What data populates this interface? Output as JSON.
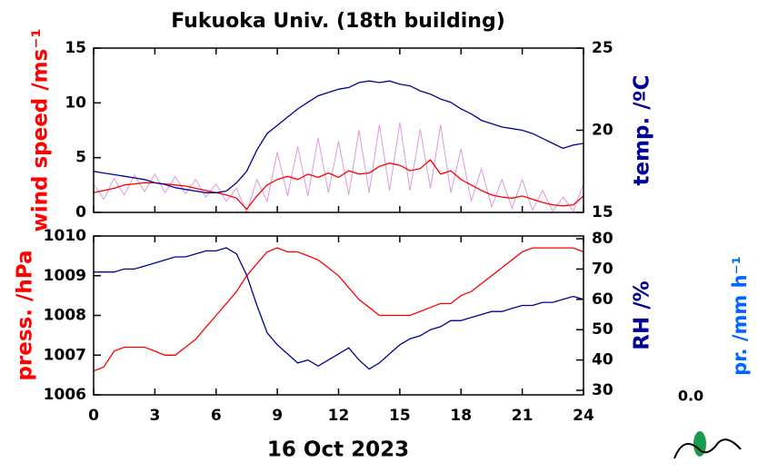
{
  "chart_data": [
    {
      "type": "line",
      "title": "Fukuoka Univ. (18th building)",
      "ylabel": "wind speed /ms⁻¹",
      "y2label": "temp. /ºC",
      "x": [
        0,
        0.5,
        1,
        1.5,
        2,
        2.5,
        3,
        3.5,
        4,
        4.5,
        5,
        5.5,
        6,
        6.5,
        7,
        7.5,
        8,
        8.5,
        9,
        9.5,
        10,
        10.5,
        11,
        11.5,
        12,
        12.5,
        13,
        13.5,
        14,
        14.5,
        15,
        15.5,
        16,
        16.5,
        17,
        17.5,
        18,
        18.5,
        19,
        19.5,
        20,
        20.5,
        21,
        21.5,
        22,
        22.5,
        23,
        23.5,
        24
      ],
      "xlim": [
        0,
        24
      ],
      "xticks": [
        0,
        3,
        6,
        9,
        12,
        15,
        18,
        21,
        24
      ],
      "ylim": [
        0,
        15
      ],
      "yticks": [
        0,
        5,
        10,
        15
      ],
      "y2lim": [
        15,
        25
      ],
      "y2ticks": [
        15,
        20,
        25
      ],
      "ylabel_color": "#ff0000",
      "y2label_color": "#000099",
      "series": [
        {
          "color": "#dd99dd",
          "values": [
            2.6,
            1.2,
            3.1,
            1.6,
            3.4,
            1.9,
            3.5,
            1.8,
            3.3,
            1.7,
            3.0,
            1.4,
            2.6,
            1.0,
            2.2,
            0.0,
            3.0,
            1.0,
            5.5,
            1.5,
            6.0,
            1.5,
            6.8,
            1.8,
            6.5,
            1.6,
            7.5,
            1.8,
            8.0,
            2.0,
            8.2,
            2.0,
            7.6,
            2.2,
            8.0,
            1.8,
            5.8,
            1.0,
            4.0,
            0.5,
            3.0,
            0.4,
            3.0,
            0.2,
            2.0,
            0.1,
            1.4,
            0.1,
            2.6
          ]
        },
        {
          "color": "#ff0000",
          "values": [
            1.8,
            2.0,
            2.2,
            2.5,
            2.6,
            2.7,
            2.7,
            2.6,
            2.5,
            2.4,
            2.2,
            2.0,
            1.8,
            1.6,
            1.3,
            0.3,
            1.5,
            2.5,
            3.0,
            3.3,
            3.0,
            3.5,
            3.2,
            3.6,
            3.2,
            3.8,
            3.5,
            3.6,
            4.2,
            4.5,
            4.3,
            3.8,
            4.0,
            4.8,
            3.5,
            3.8,
            3.0,
            2.5,
            2.0,
            1.6,
            1.4,
            1.3,
            1.5,
            1.2,
            0.9,
            0.7,
            0.6,
            0.7,
            1.5
          ]
        },
        {
          "color": "#000099",
          "axis": "y2",
          "values": [
            17.5,
            17.4,
            17.3,
            17.2,
            17.1,
            17.0,
            16.8,
            16.7,
            16.5,
            16.4,
            16.3,
            16.2,
            16.2,
            16.3,
            16.8,
            17.5,
            18.8,
            19.8,
            20.3,
            20.8,
            21.3,
            21.7,
            22.1,
            22.3,
            22.5,
            22.6,
            22.9,
            23.0,
            22.9,
            23.0,
            22.8,
            22.7,
            22.4,
            22.2,
            21.9,
            21.7,
            21.3,
            21.0,
            20.6,
            20.4,
            20.2,
            20.1,
            20.0,
            19.8,
            19.5,
            19.2,
            18.9,
            19.1,
            19.2
          ]
        }
      ]
    },
    {
      "type": "line",
      "xlabel": "16 Oct 2023",
      "ylabel": "press. /hPa",
      "y2label": "RH /%",
      "x": [
        0,
        0.5,
        1,
        1.5,
        2,
        2.5,
        3,
        3.5,
        4,
        4.5,
        5,
        5.5,
        6,
        6.5,
        7,
        7.5,
        8,
        8.5,
        9,
        9.5,
        10,
        10.5,
        11,
        11.5,
        12,
        12.5,
        13,
        13.5,
        14,
        14.5,
        15,
        15.5,
        16,
        16.5,
        17,
        17.5,
        18,
        18.5,
        19,
        19.5,
        20,
        20.5,
        21,
        21.5,
        22,
        22.5,
        23,
        23.5,
        24
      ],
      "xlim": [
        0,
        24
      ],
      "xticks": [
        0,
        3,
        6,
        9,
        12,
        15,
        18,
        21,
        24
      ],
      "ylim": [
        1006,
        1010
      ],
      "yticks": [
        1006,
        1007,
        1008,
        1009,
        1010
      ],
      "y2lim": [
        28.5,
        80.9
      ],
      "y2ticks": [
        30,
        40,
        50,
        60,
        70,
        80
      ],
      "ylabel_color": "#ff0000",
      "y2label_color": "#000099",
      "series": [
        {
          "color": "#ff0000",
          "values": [
            1006.6,
            1006.7,
            1007.1,
            1007.2,
            1007.2,
            1007.2,
            1007.1,
            1007.0,
            1007.0,
            1007.2,
            1007.4,
            1007.7,
            1008.0,
            1008.3,
            1008.6,
            1009.0,
            1009.3,
            1009.6,
            1009.7,
            1009.6,
            1009.6,
            1009.5,
            1009.4,
            1009.2,
            1009.0,
            1008.7,
            1008.4,
            1008.2,
            1008.0,
            1008.0,
            1008.0,
            1008.0,
            1008.1,
            1008.2,
            1008.3,
            1008.3,
            1008.5,
            1008.6,
            1008.8,
            1009.0,
            1009.2,
            1009.4,
            1009.6,
            1009.7,
            1009.7,
            1009.7,
            1009.7,
            1009.7,
            1009.6
          ]
        },
        {
          "color": "#000099",
          "axis": "y2",
          "values": [
            69,
            69,
            69,
            70,
            70,
            71,
            72,
            73,
            74,
            74,
            75,
            76,
            76,
            77,
            75,
            68,
            58,
            49,
            45,
            42,
            39,
            40,
            38,
            40,
            42,
            44,
            40,
            37,
            39,
            42,
            45,
            47,
            48,
            50,
            51,
            53,
            53,
            54,
            55,
            56,
            56,
            57,
            58,
            58,
            59,
            59,
            60,
            61,
            60
          ]
        }
      ],
      "precipitation": {
        "label": "pr. /mm h⁻¹",
        "total": "0.0",
        "color": "#0066ff"
      }
    }
  ]
}
